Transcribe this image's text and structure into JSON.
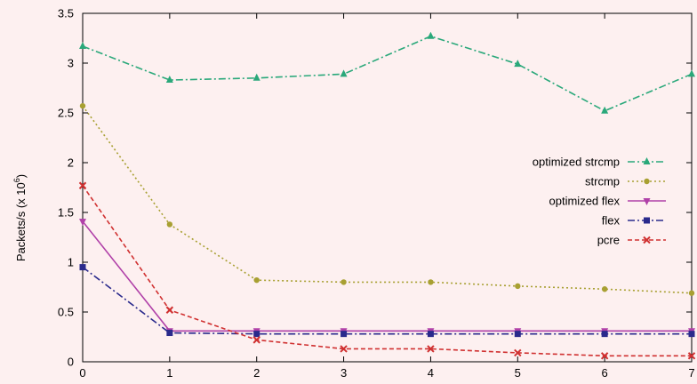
{
  "chart_data": {
    "type": "line",
    "title": "",
    "xlabel": "",
    "ylabel": "Packets/s (x 10",
    "ylabel_superscript": "6",
    "ylabel_suffix": ")",
    "xlim": [
      0,
      7
    ],
    "ylim": [
      0,
      3.5
    ],
    "x_ticks": [
      "0",
      "1",
      "2",
      "3",
      "4",
      "5",
      "6",
      "7"
    ],
    "y_ticks": [
      "0",
      "0.5",
      "1",
      "1.5",
      "2",
      "2.5",
      "3",
      "3.5"
    ],
    "grid": false,
    "legend_position": "right",
    "x": [
      0,
      1,
      2,
      3,
      4,
      5,
      6,
      7
    ],
    "series": [
      {
        "name": "optimized strcmp",
        "values": [
          3.17,
          2.83,
          2.85,
          2.89,
          3.27,
          2.99,
          2.52,
          2.89
        ],
        "color": "#2aa87a",
        "dash": "dashdot",
        "marker": "triangle-up"
      },
      {
        "name": "strcmp",
        "values": [
          2.57,
          1.38,
          0.82,
          0.8,
          0.8,
          0.76,
          0.73,
          0.69
        ],
        "color": "#a8a032",
        "dash": "dotted",
        "marker": "circle"
      },
      {
        "name": "optimized flex",
        "values": [
          1.41,
          0.31,
          0.31,
          0.31,
          0.31,
          0.31,
          0.31,
          0.31
        ],
        "color": "#b040a8",
        "dash": "solid",
        "marker": "triangle-down"
      },
      {
        "name": "flex",
        "values": [
          0.95,
          0.29,
          0.28,
          0.28,
          0.28,
          0.28,
          0.28,
          0.28
        ],
        "color": "#2a2a8c",
        "dash": "dashdot",
        "marker": "square"
      },
      {
        "name": "pcre",
        "values": [
          1.77,
          0.52,
          0.22,
          0.13,
          0.13,
          0.09,
          0.06,
          0.06
        ],
        "color": "#d03030",
        "dash": "dashed",
        "marker": "x"
      }
    ]
  }
}
